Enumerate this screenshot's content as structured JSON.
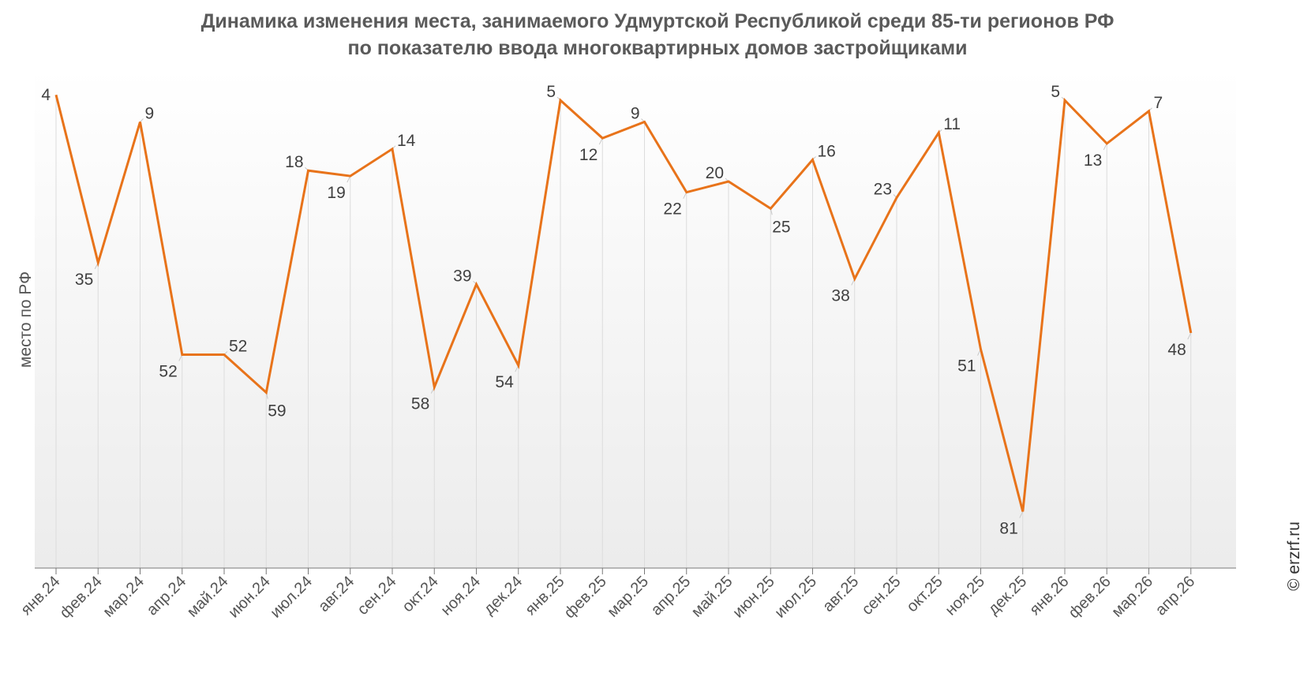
{
  "title_lines": [
    "Динамика изменения места, занимаемого Удмуртской Республикой среди 85-ти регионов РФ",
    "по показателю ввода многоквартирных домов застройщиками"
  ],
  "credit": "© erzrf.ru",
  "colors": {
    "line": "#e8731a",
    "label": "#404040",
    "axis": "#555555",
    "leader": "#c8c8c8"
  },
  "chart_data": {
    "type": "line",
    "title": "Динамика изменения места, занимаемого Удмуртской Республикой среди 85-ти регионов РФ по показателю ввода многоквартирных домов застройщиками",
    "xlabel": "",
    "ylabel": "место по РФ",
    "y_reversed": true,
    "ylim": [
      1,
      86
    ],
    "grid": "vertical",
    "legend": "none",
    "categories": [
      "янв.24",
      "фев.24",
      "мар.24",
      "апр.24",
      "май.24",
      "июн.24",
      "июл.24",
      "авг.24",
      "сен.24",
      "окт.24",
      "ноя.24",
      "дек.24",
      "янв.25",
      "фев.25",
      "мар.25",
      "апр.25",
      "май.25",
      "июн.25",
      "июл.25",
      "авг.25",
      "сен.25",
      "окт.25",
      "ноя.25",
      "дек.25",
      "янв.26",
      "фев.26",
      "мар.26",
      "апр.26"
    ],
    "series": [
      {
        "values": [
          4,
          35,
          9,
          52,
          52,
          59,
          18,
          19,
          14,
          58,
          39,
          54,
          5,
          12,
          9,
          22,
          20,
          25,
          16,
          38,
          23,
          11,
          51,
          81,
          5,
          13,
          7,
          48
        ]
      }
    ]
  }
}
